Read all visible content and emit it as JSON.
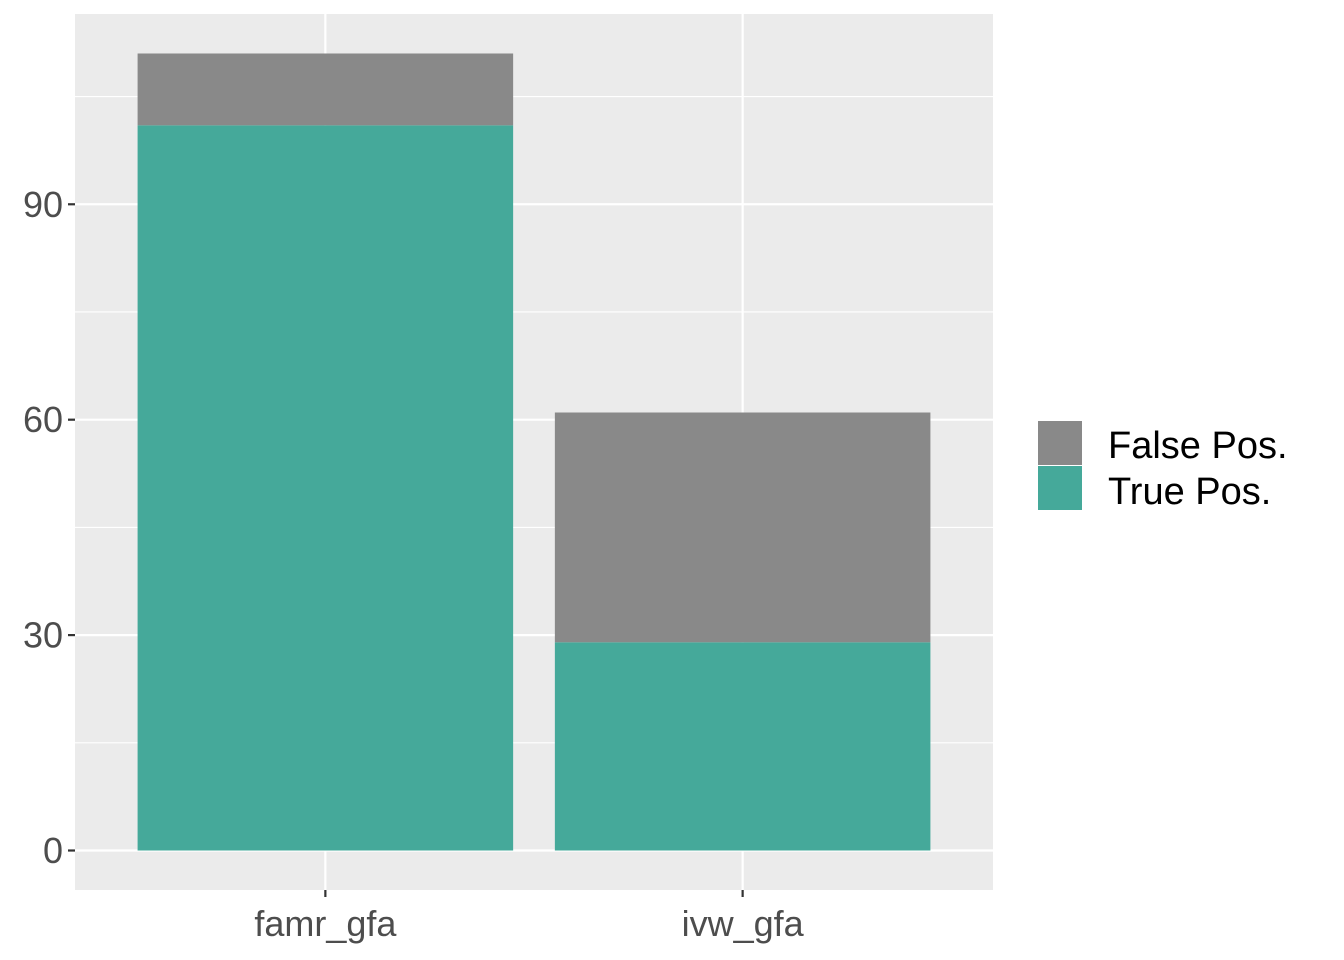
{
  "chart_data": {
    "type": "bar",
    "stacked": true,
    "categories": [
      "famr_gfa",
      "ivw_gfa"
    ],
    "series": [
      {
        "name": "True Pos.",
        "values": [
          101,
          29
        ],
        "color": "#45A99A"
      },
      {
        "name": "False Pos.",
        "values": [
          10,
          32
        ],
        "color": "#898989"
      }
    ],
    "title": "",
    "xlabel": "",
    "ylabel": "",
    "ylim": [
      -5.5,
      116.5
    ],
    "yticks": [
      0,
      30,
      60,
      90
    ],
    "ytick_labels": [
      "0",
      "30",
      "60",
      "90"
    ],
    "grid": true,
    "legend": {
      "placement": "right",
      "entries": [
        "False Pos.",
        "True Pos."
      ]
    },
    "colors": {
      "panel_background": "#EBEBEB",
      "grid": "#FFFFFF",
      "tick_text": "#4D4D4D"
    }
  }
}
